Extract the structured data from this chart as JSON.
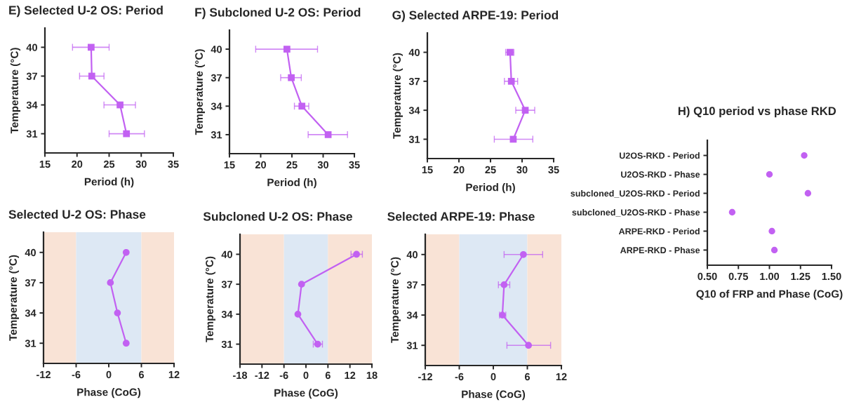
{
  "chart_data": [
    {
      "type": "line",
      "title": "E) Selected U-2 OS: Period",
      "xlabel": "Period (h)",
      "ylabel": "Temperature (°C)",
      "marker": "square",
      "grid": false,
      "xlim": [
        15,
        35
      ],
      "xticks": [
        15,
        20,
        25,
        30,
        35
      ],
      "ylim": [
        29,
        42
      ],
      "yticks": [
        31,
        34,
        37,
        40
      ],
      "series": [
        {
          "color": "#c261f2",
          "x": [
            22.2,
            22.3,
            26.7,
            27.7
          ],
          "values": [
            40,
            37,
            34,
            31
          ],
          "xerrors": [
            [
              19.3,
              25.0
            ],
            [
              20.4,
              24.2
            ],
            [
              24.2,
              29.1
            ],
            [
              25.0,
              30.5
            ]
          ]
        }
      ]
    },
    {
      "type": "line",
      "title": "F) Subcloned U-2 OS: Period",
      "xlabel": "Period (h)",
      "ylabel": "Temperature (°C)",
      "marker": "square",
      "grid": false,
      "xlim": [
        15,
        35
      ],
      "xticks": [
        15,
        20,
        25,
        30,
        35
      ],
      "ylim": [
        29,
        42
      ],
      "yticks": [
        31,
        34,
        37,
        40
      ],
      "series": [
        {
          "color": "#c261f2",
          "x": [
            24.2,
            24.9,
            26.6,
            30.8
          ],
          "values": [
            40,
            37,
            34,
            31
          ],
          "xerrors": [
            [
              19.2,
              29.1
            ],
            [
              23.2,
              26.5
            ],
            [
              25.4,
              27.7
            ],
            [
              27.6,
              33.9
            ]
          ]
        }
      ]
    },
    {
      "type": "line",
      "title": "G) Selected ARPE-19: Period",
      "xlabel": "Period (h)",
      "ylabel": "Temperature (°C)",
      "marker": "square",
      "grid": false,
      "xlim": [
        15,
        35
      ],
      "xticks": [
        15,
        20,
        25,
        30,
        35
      ],
      "ylim": [
        29,
        42
      ],
      "yticks": [
        31,
        34,
        37,
        40
      ],
      "series": [
        {
          "color": "#c261f2",
          "x": [
            28.1,
            28.3,
            30.5,
            28.6
          ],
          "values": [
            40,
            37,
            34,
            31
          ],
          "xerrors": [
            [
              27.4,
              28.7
            ],
            [
              27.2,
              29.3
            ],
            [
              29.0,
              32.0
            ],
            [
              25.6,
              31.7
            ]
          ]
        }
      ]
    },
    {
      "type": "line",
      "title": "Selected U-2 OS: Phase",
      "xlabel": "Phase (CoG)",
      "ylabel": "Temperature (°C)",
      "marker": "circle",
      "grid": false,
      "xlim": [
        -12,
        12
      ],
      "xticks": [
        -12,
        -6,
        0,
        6,
        12
      ],
      "ylim": [
        29,
        42
      ],
      "yticks": [
        31,
        34,
        37,
        40
      ],
      "bands": [
        {
          "axis": "x",
          "from": -12,
          "to": -6,
          "color": "#f9e3d6"
        },
        {
          "axis": "x",
          "from": -6,
          "to": 6,
          "color": "#dde8f4"
        },
        {
          "axis": "x",
          "from": 6,
          "to": 12,
          "color": "#f9e3d6"
        }
      ],
      "series": [
        {
          "color": "#c261f2",
          "x": [
            3.2,
            0.3,
            1.6,
            3.2
          ],
          "values": [
            40,
            37,
            34,
            31
          ]
        }
      ]
    },
    {
      "type": "line",
      "title": "Subcloned U-2 OS: Phase",
      "xlabel": "Phase (CoG)",
      "ylabel": "Temperature (°C)",
      "marker": "circle",
      "grid": false,
      "xlim": [
        -18,
        18
      ],
      "xticks": [
        -18,
        -12,
        -6,
        0,
        6,
        12,
        18
      ],
      "ylim": [
        29,
        42
      ],
      "yticks": [
        31,
        34,
        37,
        40
      ],
      "bands": [
        {
          "axis": "x",
          "from": -18,
          "to": -6,
          "color": "#f9e3d6"
        },
        {
          "axis": "x",
          "from": -6,
          "to": 6,
          "color": "#dde8f4"
        },
        {
          "axis": "x",
          "from": 6,
          "to": 18,
          "color": "#f9e3d6"
        }
      ],
      "series": [
        {
          "color": "#c261f2",
          "x": [
            13.8,
            -1.2,
            -2.2,
            3.2
          ],
          "values": [
            40,
            37,
            34,
            31
          ],
          "xerrors": [
            [
              12.3,
              15.4
            ],
            null,
            null,
            [
              2.0,
              4.5
            ]
          ]
        }
      ]
    },
    {
      "type": "line",
      "title": "Selected ARPE-19: Phase",
      "xlabel": "Phase (CoG)",
      "ylabel": "Temperature (°C)",
      "marker": "circle",
      "grid": false,
      "xlim": [
        -12,
        12
      ],
      "xticks": [
        -12,
        -6,
        0,
        6,
        12
      ],
      "ylim": [
        29,
        42
      ],
      "yticks": [
        31,
        34,
        37,
        40
      ],
      "bands": [
        {
          "axis": "x",
          "from": -12,
          "to": -6,
          "color": "#f9e3d6"
        },
        {
          "axis": "x",
          "from": -6,
          "to": 6,
          "color": "#dde8f4"
        },
        {
          "axis": "x",
          "from": 6,
          "to": 12,
          "color": "#f9e3d6"
        }
      ],
      "series": [
        {
          "color": "#c261f2",
          "x": [
            5.3,
            1.9,
            1.6,
            6.2
          ],
          "values": [
            40,
            37,
            34,
            31
          ],
          "xerrors": [
            [
              1.9,
              8.7
            ],
            [
              0.9,
              2.9
            ],
            [
              1.1,
              2.2
            ],
            [
              2.4,
              10.1
            ]
          ]
        }
      ]
    },
    {
      "type": "scatter",
      "title": "H) Q10 period vs phase RKD",
      "xlabel": "Q10 of FRP and Phase (CoG)",
      "orientation": "horizontal",
      "marker": "circle",
      "grid": false,
      "xlim": [
        0.5,
        1.5
      ],
      "xticks": [
        {
          "value": 0.5,
          "label": "0.50"
        },
        {
          "value": 0.75,
          "label": "0.75"
        },
        {
          "value": 1.0,
          "label": "1.00"
        },
        {
          "value": 1.25,
          "label": "1.25"
        },
        {
          "value": 1.5,
          "label": "1.50"
        }
      ],
      "categories": [
        "U2OS-RKD - Period",
        "U2OS-RKD - Phase",
        "subcloned_U2OS-RKD - Period",
        "subcloned_U2OS-RKD - Phase",
        "ARPE-RKD - Period",
        "ARPE-RKD - Phase"
      ],
      "series": [
        {
          "color": "#c261f2",
          "values": [
            1.28,
            1.0,
            1.31,
            0.7,
            1.02,
            1.04
          ]
        }
      ]
    }
  ]
}
